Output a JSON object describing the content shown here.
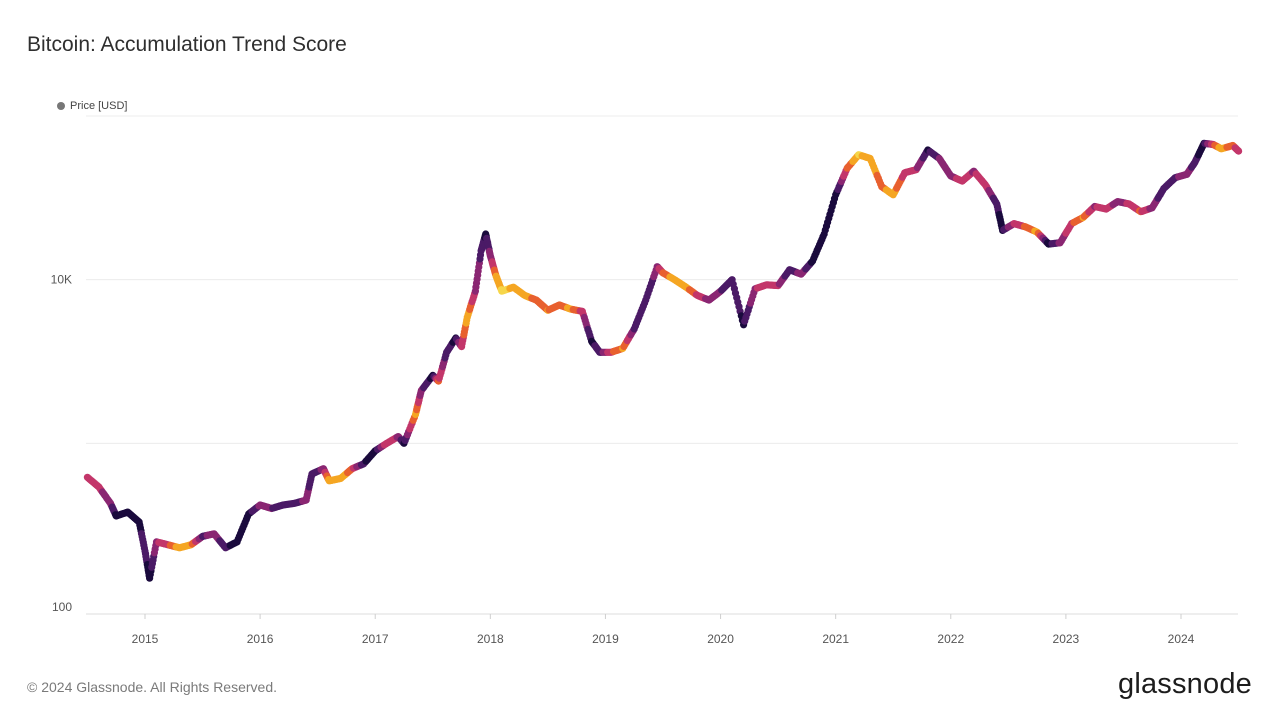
{
  "page": {
    "title": "Bitcoin: Accumulation Trend Score",
    "legend_label": "Price [USD]",
    "copyright": "© 2024 Glassnode. All Rights Reserved.",
    "logo_text": "glassnode"
  },
  "colors": {
    "legend_dot": "#777777",
    "gridline": "#ececec",
    "score_scale": [
      "#1a0a3d",
      "#4b1a66",
      "#8a2672",
      "#c3366a",
      "#e8602f",
      "#f5a623",
      "#f6d64a"
    ]
  },
  "chart_data": {
    "type": "scatter",
    "title": "Bitcoin: Accumulation Trend Score",
    "xlabel": "",
    "ylabel": "",
    "y_scale": "log",
    "ylim": [
      90,
      85000
    ],
    "xlim": [
      2014.5,
      2024.5
    ],
    "grid": true,
    "legend": {
      "placement": "top-left",
      "entries": [
        "Price [USD]"
      ]
    },
    "y_ticks": [
      {
        "value": 100,
        "label": "100"
      },
      {
        "value": 10000,
        "label": "10K"
      }
    ],
    "x_ticks": [
      {
        "value": 2015,
        "label": "2015"
      },
      {
        "value": 2016,
        "label": "2016"
      },
      {
        "value": 2017,
        "label": "2017"
      },
      {
        "value": 2018,
        "label": "2018"
      },
      {
        "value": 2019,
        "label": "2019"
      },
      {
        "value": 2020,
        "label": "2020"
      },
      {
        "value": 2021,
        "label": "2021"
      },
      {
        "value": 2022,
        "label": "2022"
      },
      {
        "value": 2023,
        "label": "2023"
      },
      {
        "value": 2024,
        "label": "2024"
      }
    ],
    "series": [
      {
        "color_by": "accumulation_trend_score",
        "points": [
          [
            2014.5,
            620,
            0.55
          ],
          [
            2014.6,
            540,
            0.45
          ],
          [
            2014.7,
            430,
            0.3
          ],
          [
            2014.75,
            360,
            0.05
          ],
          [
            2014.85,
            380,
            0.0
          ],
          [
            2014.95,
            330,
            0.05
          ],
          [
            2015.0,
            220,
            0.15
          ],
          [
            2015.04,
            150,
            0.0
          ],
          [
            2015.1,
            250,
            0.4
          ],
          [
            2015.2,
            240,
            0.55
          ],
          [
            2015.3,
            230,
            0.85
          ],
          [
            2015.4,
            240,
            0.75
          ],
          [
            2015.5,
            270,
            0.2
          ],
          [
            2015.6,
            280,
            0.35
          ],
          [
            2015.7,
            230,
            0.1
          ],
          [
            2015.8,
            250,
            0.05
          ],
          [
            2015.9,
            370,
            0.0
          ],
          [
            2016.0,
            420,
            0.3
          ],
          [
            2016.1,
            400,
            0.25
          ],
          [
            2016.2,
            420,
            0.15
          ],
          [
            2016.3,
            430,
            0.1
          ],
          [
            2016.4,
            450,
            0.35
          ],
          [
            2016.45,
            650,
            0.1
          ],
          [
            2016.55,
            700,
            0.3
          ],
          [
            2016.6,
            590,
            0.85
          ],
          [
            2016.7,
            610,
            0.9
          ],
          [
            2016.8,
            700,
            0.6
          ],
          [
            2016.9,
            750,
            0.1
          ],
          [
            2017.0,
            900,
            0.0
          ],
          [
            2017.1,
            1000,
            0.55
          ],
          [
            2017.2,
            1100,
            0.4
          ],
          [
            2017.25,
            1000,
            0.05
          ],
          [
            2017.35,
            1500,
            0.8
          ],
          [
            2017.4,
            2100,
            0.3
          ],
          [
            2017.5,
            2600,
            0.0
          ],
          [
            2017.55,
            2400,
            0.6
          ],
          [
            2017.62,
            3600,
            0.15
          ],
          [
            2017.7,
            4400,
            0.05
          ],
          [
            2017.75,
            3900,
            0.45
          ],
          [
            2017.8,
            5900,
            0.85
          ],
          [
            2017.87,
            8500,
            0.4
          ],
          [
            2017.92,
            15000,
            0.2
          ],
          [
            2017.96,
            19000,
            0.05
          ],
          [
            2018.0,
            14000,
            0.3
          ],
          [
            2018.05,
            10500,
            0.75
          ],
          [
            2018.1,
            8500,
            0.95
          ],
          [
            2018.2,
            9000,
            0.9
          ],
          [
            2018.3,
            8000,
            0.9
          ],
          [
            2018.4,
            7500,
            0.6
          ],
          [
            2018.5,
            6500,
            0.75
          ],
          [
            2018.6,
            7000,
            0.65
          ],
          [
            2018.7,
            6600,
            0.8
          ],
          [
            2018.8,
            6400,
            0.5
          ],
          [
            2018.88,
            4200,
            0.05
          ],
          [
            2018.95,
            3600,
            0.15
          ],
          [
            2019.05,
            3600,
            0.55
          ],
          [
            2019.15,
            3800,
            0.75
          ],
          [
            2019.25,
            5000,
            0.2
          ],
          [
            2019.35,
            7500,
            0.1
          ],
          [
            2019.45,
            12000,
            0.35
          ],
          [
            2019.5,
            11000,
            0.6
          ],
          [
            2019.6,
            10000,
            0.85
          ],
          [
            2019.7,
            9000,
            0.8
          ],
          [
            2019.8,
            8000,
            0.55
          ],
          [
            2019.9,
            7500,
            0.35
          ],
          [
            2020.0,
            8500,
            0.25
          ],
          [
            2020.1,
            10000,
            0.2
          ],
          [
            2020.2,
            5300,
            0.05
          ],
          [
            2020.3,
            8800,
            0.4
          ],
          [
            2020.4,
            9300,
            0.55
          ],
          [
            2020.5,
            9200,
            0.45
          ],
          [
            2020.6,
            11500,
            0.1
          ],
          [
            2020.7,
            10800,
            0.35
          ],
          [
            2020.8,
            13000,
            0.05
          ],
          [
            2020.9,
            19000,
            0.05
          ],
          [
            2021.0,
            33000,
            0.0
          ],
          [
            2021.1,
            48000,
            0.6
          ],
          [
            2021.2,
            58000,
            0.95
          ],
          [
            2021.3,
            55000,
            0.8
          ],
          [
            2021.4,
            37000,
            0.7
          ],
          [
            2021.5,
            33000,
            0.85
          ],
          [
            2021.6,
            45000,
            0.5
          ],
          [
            2021.7,
            47000,
            0.45
          ],
          [
            2021.8,
            62000,
            0.05
          ],
          [
            2021.9,
            55000,
            0.25
          ],
          [
            2022.0,
            43000,
            0.35
          ],
          [
            2022.1,
            40000,
            0.5
          ],
          [
            2022.2,
            46000,
            0.4
          ],
          [
            2022.3,
            38000,
            0.55
          ],
          [
            2022.4,
            29000,
            0.1
          ],
          [
            2022.45,
            20000,
            0.05
          ],
          [
            2022.55,
            22000,
            0.45
          ],
          [
            2022.65,
            21000,
            0.6
          ],
          [
            2022.75,
            19500,
            0.8
          ],
          [
            2022.85,
            16500,
            0.0
          ],
          [
            2022.95,
            16800,
            0.3
          ],
          [
            2023.05,
            22000,
            0.55
          ],
          [
            2023.15,
            24000,
            0.75
          ],
          [
            2023.25,
            28000,
            0.4
          ],
          [
            2023.35,
            27000,
            0.55
          ],
          [
            2023.45,
            30000,
            0.3
          ],
          [
            2023.55,
            29000,
            0.45
          ],
          [
            2023.65,
            26000,
            0.6
          ],
          [
            2023.75,
            27500,
            0.35
          ],
          [
            2023.85,
            36000,
            0.1
          ],
          [
            2023.95,
            42000,
            0.2
          ],
          [
            2024.05,
            44000,
            0.4
          ],
          [
            2024.12,
            52000,
            0.1
          ],
          [
            2024.2,
            68000,
            0.05
          ],
          [
            2024.28,
            67000,
            0.55
          ],
          [
            2024.35,
            63000,
            0.85
          ],
          [
            2024.45,
            66000,
            0.6
          ],
          [
            2024.5,
            61000,
            0.55
          ]
        ]
      }
    ]
  }
}
